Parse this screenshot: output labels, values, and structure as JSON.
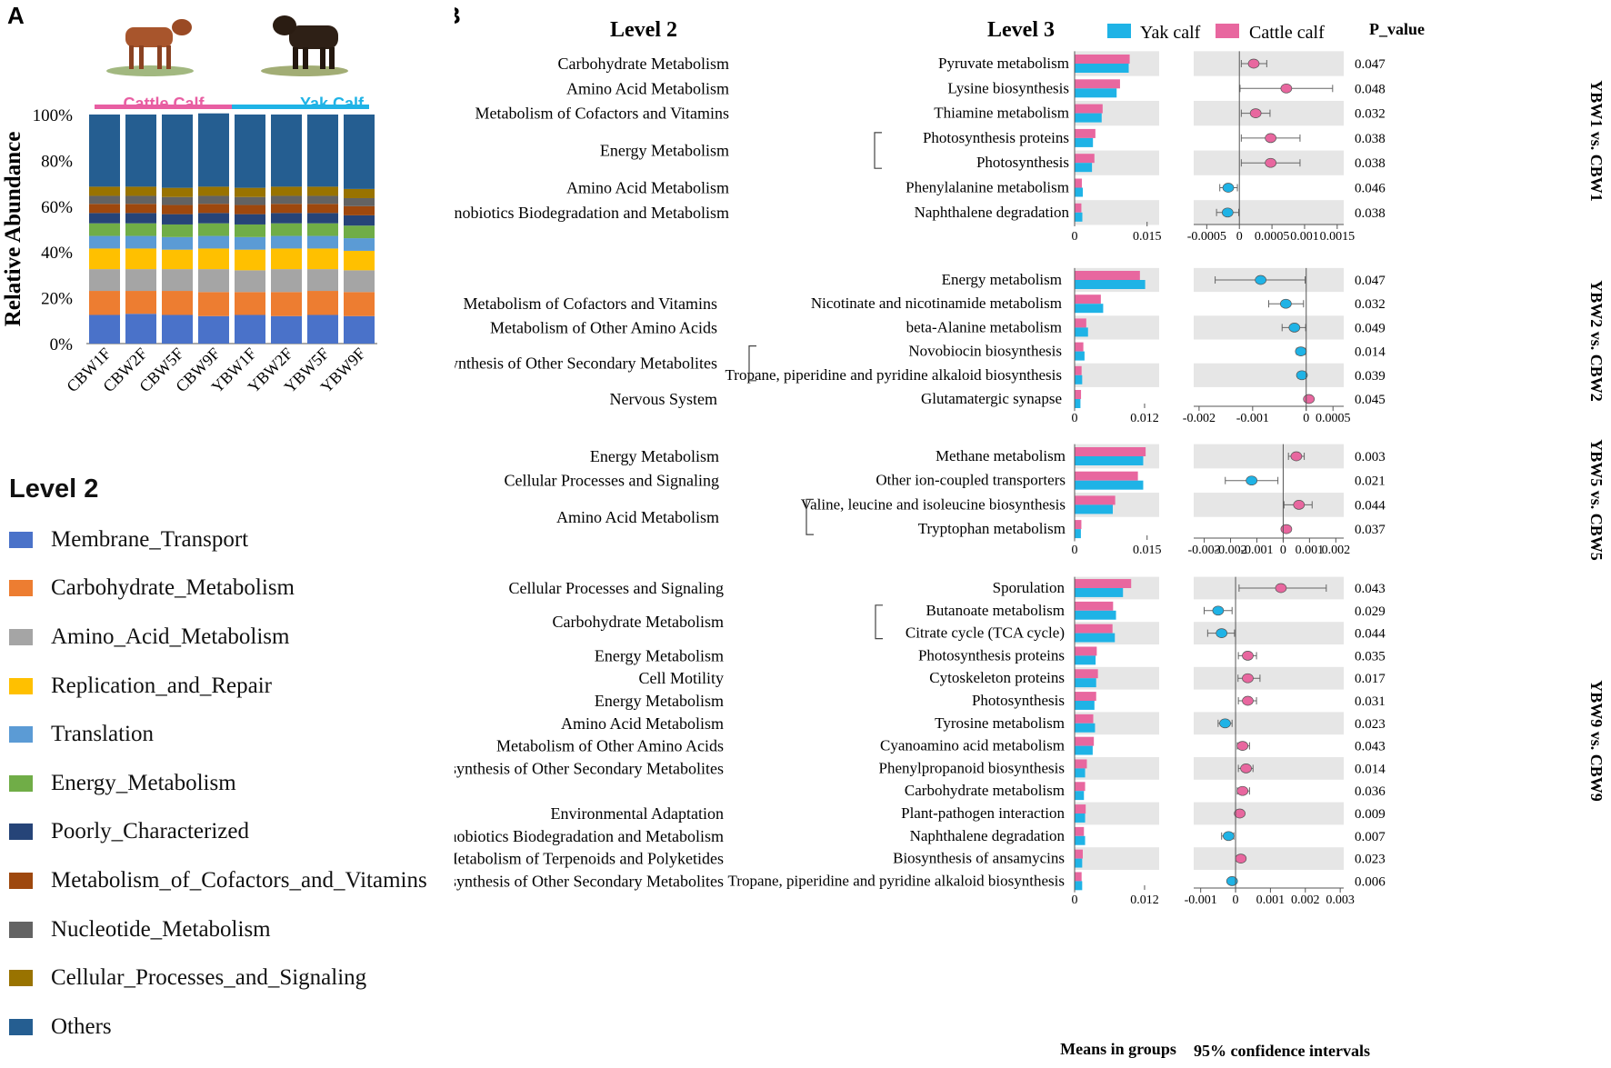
{
  "panel_labels": {
    "a": "A",
    "b": "B"
  },
  "panelA": {
    "group_labels": [
      "Cattle Calf",
      "Yak Calf"
    ],
    "group_colors": [
      "#e85ea2",
      "#1fb3e6"
    ],
    "legend_title": "Level 2",
    "legend": [
      {
        "label": "Membrane_Transport",
        "color": "#4a72c9"
      },
      {
        "label": "Carbohydrate_Metabolism",
        "color": "#ed7d31"
      },
      {
        "label": "Amino_Acid_Metabolism",
        "color": "#a5a5a5"
      },
      {
        "label": "Replication_and_Repair",
        "color": "#ffc000"
      },
      {
        "label": "Translation",
        "color": "#5b9bd5"
      },
      {
        "label": "Energy_Metabolism",
        "color": "#70ad47"
      },
      {
        "label": "Poorly_Characterized",
        "color": "#264478"
      },
      {
        "label": "Metabolism_of_Cofactors_and_Vitamins",
        "color": "#9e480e"
      },
      {
        "label": "Nucleotide_Metabolism",
        "color": "#636363"
      },
      {
        "label": "Cellular_Processes_and_Signaling",
        "color": "#997300"
      },
      {
        "label": "Others",
        "color": "#255e91"
      }
    ]
  },
  "panelB": {
    "header": {
      "level2": "Level 2",
      "level3": "Level 3",
      "legend_yak": "Yak calf",
      "legend_cattle": "Cattle calf",
      "pvalue": "P_value"
    },
    "colors": {
      "yak": "#1fb3e6",
      "cattle": "#e8679f",
      "shade": "#e6e6e6"
    },
    "xlabel_means": "Means in groups",
    "xlabel_ci": "95% confidence intervals"
  },
  "chart_data": [
    {
      "type": "bar",
      "title": "",
      "ylabel": "Relative Abundance",
      "stacked": true,
      "ylim": [
        0,
        100
      ],
      "ytick_labels": [
        "0%",
        "20%",
        "40%",
        "60%",
        "80%",
        "100%"
      ],
      "categories": [
        "CBW1F",
        "CBW2F",
        "CBW5F",
        "CBW9F",
        "YBW1F",
        "YBW2F",
        "YBW5F",
        "YBW9F"
      ],
      "series": [
        {
          "name": "Membrane_Transport",
          "values": [
            12.5,
            13.0,
            12.5,
            12.0,
            12.5,
            12.0,
            12.5,
            12.0
          ]
        },
        {
          "name": "Carbohydrate_Metabolism",
          "values": [
            10.5,
            10.0,
            10.5,
            10.5,
            10.0,
            10.5,
            10.5,
            10.5
          ]
        },
        {
          "name": "Amino_Acid_Metabolism",
          "values": [
            9.5,
            9.5,
            9.5,
            10.0,
            9.5,
            10.0,
            9.5,
            9.5
          ]
        },
        {
          "name": "Replication_and_Repair",
          "values": [
            9.0,
            9.0,
            8.5,
            9.0,
            9.0,
            9.0,
            9.0,
            8.5
          ]
        },
        {
          "name": "Translation",
          "values": [
            5.5,
            5.5,
            5.5,
            5.5,
            5.5,
            5.5,
            5.5,
            5.5
          ]
        },
        {
          "name": "Energy_Metabolism",
          "values": [
            5.5,
            5.5,
            5.5,
            5.5,
            5.5,
            5.5,
            5.5,
            5.5
          ]
        },
        {
          "name": "Poorly_Characterized",
          "values": [
            4.5,
            4.5,
            4.5,
            4.5,
            4.5,
            4.5,
            4.5,
            4.5
          ]
        },
        {
          "name": "Metabolism_of_Cofactors_and_Vitamins",
          "values": [
            4.0,
            4.0,
            4.0,
            4.0,
            4.0,
            4.0,
            4.0,
            4.0
          ]
        },
        {
          "name": "Nucleotide_Metabolism",
          "values": [
            3.5,
            3.5,
            3.5,
            3.5,
            3.5,
            3.5,
            3.5,
            3.5
          ]
        },
        {
          "name": "Cellular_Processes_and_Signaling",
          "values": [
            4.0,
            4.0,
            4.0,
            4.0,
            4.0,
            4.0,
            4.0,
            4.0
          ]
        },
        {
          "name": "Others",
          "values": [
            31.5,
            31.5,
            32.0,
            32.0,
            32.0,
            31.5,
            31.5,
            32.5
          ]
        }
      ]
    },
    {
      "type": "bar",
      "title": "YBW1 vs. CBW1",
      "means_ticks": {
        "values": [
          0,
          0.015
        ],
        "labels": [
          "0",
          "0.015"
        ],
        "max": 0.0175
      },
      "ci_range": [
        -0.0007,
        0.0016
      ],
      "ci_ticks": {
        "values": [
          -0.0005,
          0,
          0.0005,
          0.001,
          0.0015
        ],
        "labels": [
          "-0.0005",
          "0",
          "0.0005",
          "0.001",
          "0.0015"
        ]
      },
      "level2": [
        {
          "label": "Carbohydrate Metabolism",
          "rows": [
            0
          ]
        },
        {
          "label": "Amino Acid Metabolism",
          "rows": [
            1
          ]
        },
        {
          "label": "Metabolism of Cofactors and Vitamins",
          "rows": [
            2
          ]
        },
        {
          "label": "Energy Metabolism",
          "rows": [
            3,
            4
          ],
          "bracket": true
        },
        {
          "label": "Amino Acid Metabolism",
          "rows": [
            5
          ]
        },
        {
          "label": "Xenobiotics Biodegradation and Metabolism",
          "rows": [
            6
          ]
        }
      ],
      "rows": [
        {
          "level3": "Pyruvate metabolism",
          "cattle": 0.0114,
          "yak": 0.0112,
          "diff": 0.00022,
          "ci_low": 3e-05,
          "ci_high": 0.00042,
          "p": "0.047"
        },
        {
          "level3": "Lysine biosynthesis",
          "cattle": 0.0094,
          "yak": 0.0087,
          "diff": 0.00072,
          "ci_low": 1e-05,
          "ci_high": 0.00143,
          "p": "0.048"
        },
        {
          "level3": "Thiamine metabolism",
          "cattle": 0.0058,
          "yak": 0.0056,
          "diff": 0.00025,
          "ci_low": 3e-05,
          "ci_high": 0.00047,
          "p": "0.032"
        },
        {
          "level3": "Photosynthesis proteins",
          "cattle": 0.0043,
          "yak": 0.0038,
          "diff": 0.00048,
          "ci_low": 3e-05,
          "ci_high": 0.00093,
          "p": "0.038"
        },
        {
          "level3": "Photosynthesis",
          "cattle": 0.0041,
          "yak": 0.0036,
          "diff": 0.00048,
          "ci_low": 3e-05,
          "ci_high": 0.00093,
          "p": "0.038"
        },
        {
          "level3": "Phenylalanine metabolism",
          "cattle": 0.0015,
          "yak": 0.0017,
          "diff": -0.00017,
          "ci_low": -0.0003,
          "ci_high": -3e-05,
          "p": "0.046"
        },
        {
          "level3": "Naphthalene degradation",
          "cattle": 0.0014,
          "yak": 0.0016,
          "diff": -0.00018,
          "ci_low": -0.00035,
          "ci_high": -1e-05,
          "p": "0.038"
        }
      ]
    },
    {
      "type": "bar",
      "title": "YBW2 vs. CBW2",
      "means_ticks": {
        "values": [
          0,
          0.012
        ],
        "labels": [
          "0",
          "0.012"
        ],
        "max": 0.0145
      },
      "ci_range": [
        -0.0021,
        0.0007
      ],
      "ci_ticks": {
        "values": [
          -0.002,
          -0.001,
          0,
          0.0005
        ],
        "labels": [
          "-0.002",
          "-0.001",
          "0",
          "0.0005"
        ]
      },
      "level2": [
        {
          "label": "Metabolism of Cofactors and Vitamins",
          "rows": [
            1
          ]
        },
        {
          "label": "Metabolism of Other Amino Acids",
          "rows": [
            2
          ]
        },
        {
          "label": "Biosynthesis of Other Secondary Metabolites",
          "rows": [
            3,
            4
          ],
          "bracket": true
        },
        {
          "label": "Nervous System",
          "rows": [
            5
          ]
        }
      ],
      "rows": [
        {
          "level3": "Energy metabolism",
          "cattle": 0.0112,
          "yak": 0.0121,
          "diff": -0.00085,
          "ci_low": -0.0017,
          "ci_high": -2e-05,
          "p": "0.047"
        },
        {
          "level3": "Nicotinate and nicotinamide metabolism",
          "cattle": 0.0045,
          "yak": 0.0049,
          "diff": -0.00038,
          "ci_low": -0.0007,
          "ci_high": -5e-05,
          "p": "0.032"
        },
        {
          "level3": "beta-Alanine metabolism",
          "cattle": 0.002,
          "yak": 0.0023,
          "diff": -0.00022,
          "ci_low": -0.00045,
          "ci_high": -1e-05,
          "p": "0.049"
        },
        {
          "level3": "Novobiocin biosynthesis",
          "cattle": 0.0015,
          "yak": 0.0017,
          "diff": -0.0001,
          "ci_low": -0.00018,
          "ci_high": -2e-05,
          "p": "0.014"
        },
        {
          "level3": "Tropane, piperidine and pyridine alkaloid biosynthesis",
          "cattle": 0.0012,
          "yak": 0.0013,
          "diff": -8e-05,
          "ci_low": -0.00015,
          "ci_high": -1e-05,
          "p": "0.039"
        },
        {
          "level3": "Glutamatergic synapse",
          "cattle": 0.0011,
          "yak": 0.001,
          "diff": 5e-05,
          "ci_low": 1e-05,
          "ci_high": 0.0001,
          "p": "0.045"
        }
      ]
    },
    {
      "type": "bar",
      "title": "YBW5 vs. CBW5",
      "means_ticks": {
        "values": [
          0,
          0.015
        ],
        "labels": [
          "0",
          "0.015"
        ],
        "max": 0.0175
      },
      "ci_range": [
        -0.0034,
        0.0023
      ],
      "ci_ticks": {
        "values": [
          -0.003,
          -0.002,
          -0.001,
          0,
          0.001,
          0.002
        ],
        "labels": [
          "-0.003",
          "-0.002",
          "-0.001",
          "0",
          "0.001",
          "0.002"
        ]
      },
      "level2": [
        {
          "label": "Energy Metabolism",
          "rows": [
            0
          ]
        },
        {
          "label": "Cellular Processes and Signaling",
          "rows": [
            1
          ]
        },
        {
          "label": "Amino Acid Metabolism",
          "rows": [
            2,
            3
          ],
          "bracket": true
        }
      ],
      "rows": [
        {
          "level3": "Methane metabolism",
          "cattle": 0.0147,
          "yak": 0.0142,
          "diff": 0.0005,
          "ci_low": 0.0002,
          "ci_high": 0.0008,
          "p": "0.003"
        },
        {
          "level3": "Other ion-coupled transporters",
          "cattle": 0.0131,
          "yak": 0.0142,
          "diff": -0.0012,
          "ci_low": -0.0022,
          "ci_high": -0.0002,
          "p": "0.021"
        },
        {
          "level3": "Valine, leucine and isoleucine biosynthesis",
          "cattle": 0.0084,
          "yak": 0.0079,
          "diff": 0.0006,
          "ci_low": 3e-05,
          "ci_high": 0.0011,
          "p": "0.044"
        },
        {
          "level3": "Tryptophan metabolism",
          "cattle": 0.0014,
          "yak": 0.0013,
          "diff": 0.00012,
          "ci_low": 1e-05,
          "ci_high": 0.00025,
          "p": "0.037"
        }
      ]
    },
    {
      "type": "bar",
      "title": "YBW9 vs. CBW9",
      "means_ticks": {
        "values": [
          0,
          0.012
        ],
        "labels": [
          "0",
          "0.012"
        ],
        "max": 0.0145
      },
      "ci_range": [
        -0.0012,
        0.0031
      ],
      "ci_ticks": {
        "values": [
          -0.001,
          0,
          0.001,
          0.002,
          0.003
        ],
        "labels": [
          "-0.001",
          "0",
          "0.001",
          "0.002",
          "0.003"
        ]
      },
      "level2": [
        {
          "label": "Cellular Processes and Signaling",
          "rows": [
            0
          ]
        },
        {
          "label": "Carbohydrate Metabolism",
          "rows": [
            1,
            2
          ],
          "bracket": true
        },
        {
          "label": "Energy Metabolism",
          "rows": [
            3
          ]
        },
        {
          "label": "Cell Motility",
          "rows": [
            4
          ]
        },
        {
          "label": "Energy Metabolism",
          "rows": [
            5
          ]
        },
        {
          "label": "Amino Acid Metabolism",
          "rows": [
            6
          ]
        },
        {
          "label": "Metabolism of Other Amino Acids",
          "rows": [
            7
          ]
        },
        {
          "label": "Biosynthesis of Other Secondary Metabolites",
          "rows": [
            8
          ]
        },
        {
          "label": "Environmental Adaptation",
          "rows": [
            10
          ]
        },
        {
          "label": "Xenobiotics Biodegradation and Metabolism",
          "rows": [
            11
          ]
        },
        {
          "label": "Metabolism of Terpenoids and Polyketides",
          "rows": [
            12
          ]
        },
        {
          "label": "Biosynthesis of Other Secondary Metabolites",
          "rows": [
            13
          ]
        }
      ],
      "rows": [
        {
          "level3": "Sporulation",
          "cattle": 0.0097,
          "yak": 0.0083,
          "diff": 0.0013,
          "ci_low": 0.0001,
          "ci_high": 0.0026,
          "p": "0.043"
        },
        {
          "level3": "Butanoate metabolism",
          "cattle": 0.0066,
          "yak": 0.0071,
          "diff": -0.0005,
          "ci_low": -0.0009,
          "ci_high": -0.0001,
          "p": "0.029"
        },
        {
          "level3": "Citrate cycle (TCA cycle)",
          "cattle": 0.0065,
          "yak": 0.0069,
          "diff": -0.0004,
          "ci_low": -0.0008,
          "ci_high": -3e-05,
          "p": "0.044"
        },
        {
          "level3": "Photosynthesis proteins",
          "cattle": 0.0038,
          "yak": 0.0036,
          "diff": 0.00035,
          "ci_low": 8e-05,
          "ci_high": 0.0006,
          "p": "0.035"
        },
        {
          "level3": "Cytoskeleton proteins",
          "cattle": 0.004,
          "yak": 0.0037,
          "diff": 0.00035,
          "ci_low": 7e-05,
          "ci_high": 0.0007,
          "p": "0.017"
        },
        {
          "level3": "Photosynthesis",
          "cattle": 0.0037,
          "yak": 0.0034,
          "diff": 0.00035,
          "ci_low": 8e-05,
          "ci_high": 0.0006,
          "p": "0.031"
        },
        {
          "level3": "Tyrosine metabolism",
          "cattle": 0.0032,
          "yak": 0.0035,
          "diff": -0.0003,
          "ci_low": -0.0005,
          "ci_high": -0.0001,
          "p": "0.023"
        },
        {
          "level3": "Cyanoamino acid metabolism",
          "cattle": 0.0033,
          "yak": 0.0031,
          "diff": 0.0002,
          "ci_low": 5e-05,
          "ci_high": 0.0004,
          "p": "0.043"
        },
        {
          "level3": "Phenylpropanoid biosynthesis",
          "cattle": 0.0021,
          "yak": 0.0018,
          "diff": 0.0003,
          "ci_low": 8e-05,
          "ci_high": 0.0005,
          "p": "0.014"
        },
        {
          "level3": "Carbohydrate metabolism",
          "cattle": 0.0018,
          "yak": 0.0016,
          "diff": 0.0002,
          "ci_low": 5e-05,
          "ci_high": 0.0004,
          "p": "0.036"
        },
        {
          "level3": "Plant-pathogen interaction",
          "cattle": 0.0019,
          "yak": 0.0018,
          "diff": 0.00012,
          "ci_low": 4e-05,
          "ci_high": 0.0002,
          "p": "0.009"
        },
        {
          "level3": "Naphthalene degradation",
          "cattle": 0.0016,
          "yak": 0.0018,
          "diff": -0.0002,
          "ci_low": -0.0004,
          "ci_high": -5e-05,
          "p": "0.007"
        },
        {
          "level3": "Biosynthesis of ansamycins",
          "cattle": 0.0014,
          "yak": 0.0013,
          "diff": 0.00015,
          "ci_low": 5e-05,
          "ci_high": 0.00025,
          "p": "0.023"
        },
        {
          "level3": "Tropane, piperidine and pyridine alkaloid biosynthesis",
          "cattle": 0.0012,
          "yak": 0.0013,
          "diff": -0.0001,
          "ci_low": -0.00015,
          "ci_high": -2e-05,
          "p": "0.006"
        }
      ]
    }
  ]
}
